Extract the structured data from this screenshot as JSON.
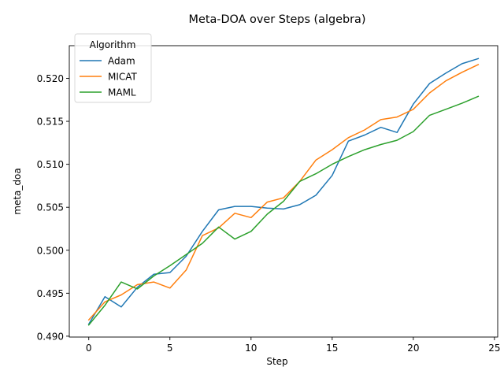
{
  "chart_data": {
    "type": "line",
    "title": "Meta-DOA over Steps (algebra)",
    "xlabel": "Step",
    "ylabel": "meta_doa",
    "xlim": [
      -1.2,
      25.2
    ],
    "ylim": [
      0.4899,
      0.5238
    ],
    "xticks": [
      0,
      5,
      10,
      15,
      20,
      25
    ],
    "yticks": [
      0.49,
      0.495,
      0.5,
      0.505,
      0.51,
      0.515,
      0.52
    ],
    "xtick_labels": [
      "0",
      "5",
      "10",
      "15",
      "20",
      "25"
    ],
    "ytick_labels": [
      "0.490",
      "0.495",
      "0.500",
      "0.505",
      "0.510",
      "0.515",
      "0.520"
    ],
    "grid": false,
    "legend": {
      "title": "Algorithm",
      "placement": "top-left"
    },
    "x": [
      0,
      1,
      2,
      3,
      4,
      5,
      6,
      7,
      8,
      9,
      10,
      11,
      12,
      13,
      14,
      15,
      16,
      17,
      18,
      19,
      20,
      21,
      22,
      23,
      24
    ],
    "series": [
      {
        "name": "Adam",
        "color": "#1f77b4",
        "values": [
          0.4914,
          0.4946,
          0.4934,
          0.4957,
          0.4972,
          0.4974,
          0.4993,
          0.5022,
          0.5047,
          0.5051,
          0.5051,
          0.5049,
          0.5048,
          0.5053,
          0.5064,
          0.5087,
          0.5127,
          0.5134,
          0.5143,
          0.5137,
          0.517,
          0.5194,
          0.5206,
          0.5217,
          0.5223
        ]
      },
      {
        "name": "MICAT",
        "color": "#ff7f0e",
        "values": [
          0.4919,
          0.494,
          0.4948,
          0.496,
          0.4963,
          0.4956,
          0.4977,
          0.5017,
          0.5026,
          0.5043,
          0.5038,
          0.5056,
          0.5061,
          0.508,
          0.5105,
          0.5117,
          0.5131,
          0.514,
          0.5152,
          0.5155,
          0.5164,
          0.5183,
          0.5197,
          0.5207,
          0.5216
        ]
      },
      {
        "name": "MAML",
        "color": "#2ca02c",
        "values": [
          0.4913,
          0.4936,
          0.4963,
          0.4955,
          0.497,
          0.4982,
          0.4995,
          0.5008,
          0.5027,
          0.5013,
          0.5022,
          0.5042,
          0.5057,
          0.508,
          0.5089,
          0.51,
          0.5109,
          0.5117,
          0.5123,
          0.5128,
          0.5138,
          0.5157,
          0.5164,
          0.5171,
          0.5179
        ]
      }
    ]
  }
}
